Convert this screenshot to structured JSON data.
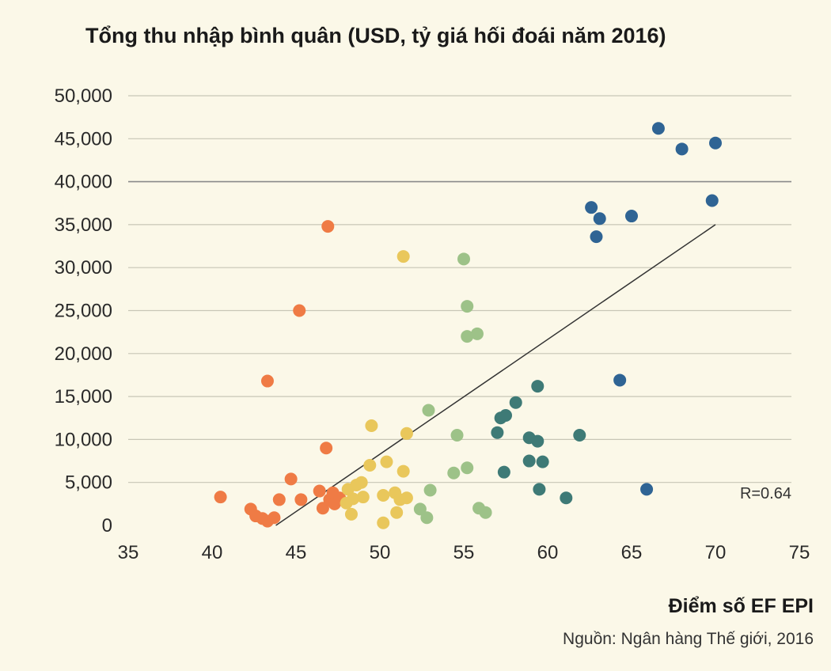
{
  "chart_data": {
    "type": "scatter",
    "title": "Tổng thu nhập bình quân (USD, tỷ giá hối đoái năm 2016)",
    "xlabel": "Điểm số EF EPI",
    "ylabel": "",
    "source": "Nguồn: Ngân hàng Thế giới, 2016",
    "annotation": "R=0.64",
    "xlim": [
      35,
      75
    ],
    "ylim": [
      0,
      50000
    ],
    "xticks": [
      35,
      40,
      45,
      50,
      55,
      60,
      65,
      70,
      75
    ],
    "xtick_labels": [
      "35",
      "40",
      "45",
      "50",
      "55",
      "60",
      "65",
      "70",
      "75"
    ],
    "yticks": [
      0,
      5000,
      10000,
      15000,
      20000,
      25000,
      30000,
      35000,
      40000,
      45000,
      50000
    ],
    "ytick_labels": [
      "0",
      "5,000",
      "10,000",
      "15,000",
      "20,000",
      "25,000",
      "30,000",
      "35,000",
      "40,000",
      "45,000",
      "50,000"
    ],
    "grid": "horizontal",
    "legend": "none",
    "trendline": {
      "x": [
        43.8,
        70
      ],
      "y": [
        0,
        35000
      ],
      "color": "#333333"
    },
    "colors": {
      "orange": "#ef7b45",
      "yellow": "#e9c75b",
      "lightgreen": "#9dc288",
      "teal": "#3e7a76",
      "blue": "#2f6494"
    },
    "series": [
      {
        "color": "#ef7b45",
        "points": [
          [
            40.5,
            3300
          ],
          [
            42.3,
            1900
          ],
          [
            42.6,
            1100
          ],
          [
            43.0,
            800
          ],
          [
            43.3,
            500
          ],
          [
            43.7,
            900
          ],
          [
            44.0,
            3000
          ],
          [
            44.7,
            5400
          ],
          [
            45.3,
            3000
          ],
          [
            46.4,
            4000
          ],
          [
            46.6,
            2000
          ],
          [
            47.0,
            3000
          ],
          [
            47.2,
            3800
          ],
          [
            47.3,
            2500
          ],
          [
            47.6,
            3200
          ],
          [
            46.8,
            9000
          ],
          [
            43.3,
            16800
          ],
          [
            45.2,
            25000
          ],
          [
            46.9,
            34800
          ]
        ]
      },
      {
        "color": "#e9c75b",
        "points": [
          [
            48.0,
            2600
          ],
          [
            48.1,
            4200
          ],
          [
            48.3,
            1300
          ],
          [
            48.4,
            3100
          ],
          [
            48.6,
            4700
          ],
          [
            48.9,
            5000
          ],
          [
            49.0,
            3300
          ],
          [
            49.4,
            7000
          ],
          [
            49.5,
            11600
          ],
          [
            50.2,
            3500
          ],
          [
            50.2,
            300
          ],
          [
            50.4,
            7400
          ],
          [
            50.9,
            3800
          ],
          [
            51.0,
            1500
          ],
          [
            51.2,
            3000
          ],
          [
            51.4,
            6300
          ],
          [
            51.6,
            3200
          ],
          [
            51.6,
            10700
          ],
          [
            51.4,
            31300
          ]
        ]
      },
      {
        "color": "#9dc288",
        "points": [
          [
            52.4,
            1900
          ],
          [
            52.8,
            900
          ],
          [
            53.0,
            4100
          ],
          [
            52.9,
            13400
          ],
          [
            54.4,
            6100
          ],
          [
            54.6,
            10500
          ],
          [
            55.2,
            6700
          ],
          [
            55.9,
            2000
          ],
          [
            56.3,
            1500
          ],
          [
            55.2,
            22000
          ],
          [
            55.8,
            22300
          ],
          [
            55.2,
            25500
          ],
          [
            55.0,
            31000
          ]
        ]
      },
      {
        "color": "#3e7a76",
        "points": [
          [
            57.0,
            10800
          ],
          [
            57.2,
            12500
          ],
          [
            57.5,
            12800
          ],
          [
            57.4,
            6200
          ],
          [
            58.1,
            14300
          ],
          [
            58.9,
            10200
          ],
          [
            58.9,
            7500
          ],
          [
            59.4,
            9800
          ],
          [
            59.5,
            4200
          ],
          [
            59.7,
            7400
          ],
          [
            59.4,
            16200
          ],
          [
            61.1,
            3200
          ],
          [
            61.9,
            10500
          ]
        ]
      },
      {
        "color": "#2f6494",
        "points": [
          [
            62.6,
            37000
          ],
          [
            62.9,
            33600
          ],
          [
            63.1,
            35700
          ],
          [
            65.0,
            36000
          ],
          [
            64.3,
            16900
          ],
          [
            65.9,
            4200
          ],
          [
            66.6,
            46200
          ],
          [
            68.0,
            43800
          ],
          [
            69.8,
            37800
          ],
          [
            70.0,
            44500
          ]
        ]
      }
    ]
  }
}
